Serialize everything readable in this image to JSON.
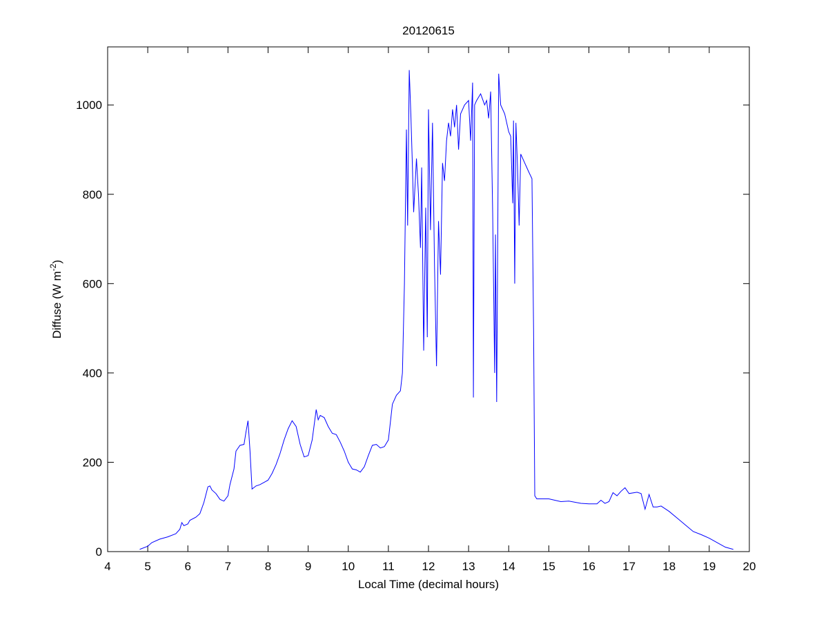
{
  "chart_data": {
    "type": "line",
    "title": "20120615",
    "xlabel": "Local Time (decimal hours)",
    "ylabel_parts": [
      "Diffuse (W m",
      "-2",
      ")"
    ],
    "xlim": [
      4,
      20
    ],
    "xticks": [
      4,
      5,
      6,
      7,
      8,
      9,
      10,
      11,
      12,
      13,
      14,
      15,
      16,
      17,
      18,
      19,
      20
    ],
    "ylim": [
      0,
      1130
    ],
    "yticks": [
      0,
      200,
      400,
      600,
      800,
      1000
    ],
    "series": [
      {
        "color": "#0000ff",
        "x": [
          4.8,
          5.0,
          5.1,
          5.3,
          5.5,
          5.7,
          5.8,
          5.85,
          5.9,
          6.0,
          6.05,
          6.2,
          6.3,
          6.4,
          6.5,
          6.55,
          6.6,
          6.7,
          6.8,
          6.9,
          7.0,
          7.05,
          7.15,
          7.2,
          7.3,
          7.4,
          7.45,
          7.5,
          7.55,
          7.6,
          7.7,
          7.8,
          8.0,
          8.1,
          8.2,
          8.3,
          8.4,
          8.5,
          8.6,
          8.7,
          8.8,
          8.9,
          9.0,
          9.1,
          9.2,
          9.25,
          9.3,
          9.4,
          9.5,
          9.6,
          9.7,
          9.8,
          9.9,
          10.0,
          10.1,
          10.2,
          10.3,
          10.4,
          10.5,
          10.6,
          10.7,
          10.8,
          10.9,
          11.0,
          11.1,
          11.2,
          11.3,
          11.35,
          11.4,
          11.45,
          11.48,
          11.52,
          11.56,
          11.6,
          11.63,
          11.7,
          11.75,
          11.8,
          11.83,
          11.88,
          11.93,
          11.97,
          12.0,
          12.05,
          12.1,
          12.15,
          12.2,
          12.25,
          12.3,
          12.35,
          12.4,
          12.45,
          12.5,
          12.55,
          12.6,
          12.65,
          12.7,
          12.75,
          12.8,
          12.9,
          13.0,
          13.05,
          13.1,
          13.12,
          13.15,
          13.2,
          13.3,
          13.4,
          13.45,
          13.5,
          13.55,
          13.6,
          13.65,
          13.67,
          13.7,
          13.72,
          13.75,
          13.8,
          13.9,
          14.0,
          14.05,
          14.1,
          14.12,
          14.15,
          14.18,
          14.22,
          14.26,
          14.3,
          14.4,
          14.5,
          14.58,
          14.62,
          14.65,
          14.7,
          15.0,
          15.3,
          15.5,
          15.8,
          16.0,
          16.2,
          16.3,
          16.4,
          16.5,
          16.6,
          16.7,
          16.8,
          16.9,
          17.0,
          17.2,
          17.3,
          17.4,
          17.5,
          17.6,
          17.7,
          17.8,
          18.0,
          18.2,
          18.4,
          18.6,
          18.8,
          19.0,
          19.2,
          19.4,
          19.6
        ],
        "values": [
          5,
          12,
          20,
          28,
          33,
          40,
          50,
          65,
          58,
          62,
          70,
          77,
          85,
          110,
          145,
          147,
          138,
          130,
          117,
          113,
          125,
          150,
          185,
          225,
          238,
          240,
          268,
          293,
          225,
          140,
          147,
          150,
          160,
          175,
          195,
          220,
          250,
          275,
          293,
          280,
          240,
          212,
          215,
          250,
          318,
          295,
          305,
          300,
          280,
          265,
          262,
          245,
          225,
          200,
          185,
          183,
          178,
          190,
          215,
          238,
          240,
          232,
          235,
          250,
          330,
          350,
          360,
          400,
          600,
          945,
          730,
          1078,
          980,
          860,
          760,
          880,
          800,
          680,
          860,
          450,
          770,
          480,
          990,
          720,
          960,
          640,
          415,
          740,
          620,
          870,
          830,
          920,
          960,
          930,
          990,
          950,
          1000,
          900,
          980,
          1000,
          1010,
          920,
          1050,
          345,
          1000,
          1010,
          1025,
          1000,
          1010,
          970,
          1030,
          760,
          400,
          710,
          335,
          600,
          1070,
          1000,
          980,
          940,
          930,
          780,
          965,
          600,
          960,
          860,
          730,
          890,
          870,
          850,
          835,
          500,
          125,
          118,
          118,
          112,
          113,
          108,
          107,
          107,
          115,
          108,
          112,
          132,
          125,
          135,
          143,
          130,
          133,
          130,
          95,
          128,
          100,
          100,
          102,
          90,
          75,
          60,
          45,
          38,
          30,
          20,
          10,
          5
        ]
      }
    ]
  }
}
